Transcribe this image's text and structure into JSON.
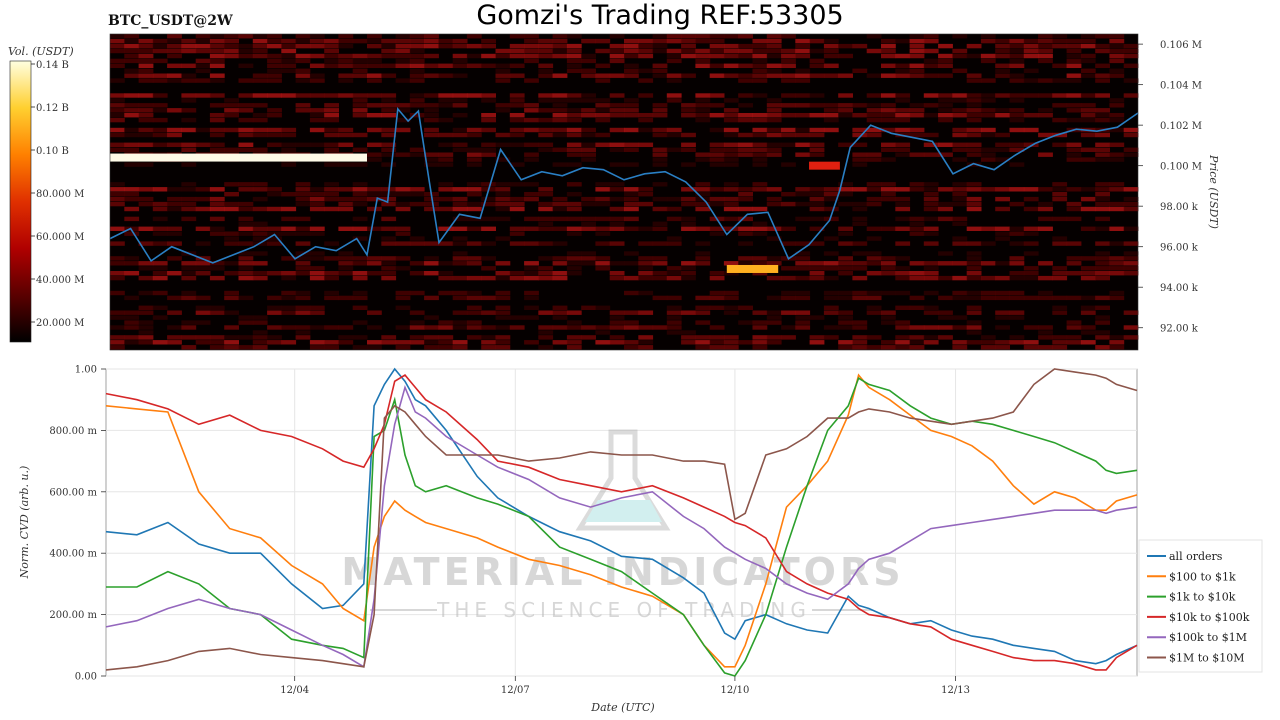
{
  "header": {
    "title": "Gomzi's Trading REF:53305",
    "subtitle": "BTC_USDT@2W"
  },
  "watermark": {
    "line1": "MATERIAL INDICATORS",
    "line2": "THE SCIENCE OF TRADING"
  },
  "chart_data": [
    {
      "type": "heatmap",
      "title": "BTC_USDT@2W",
      "colorbar": {
        "label": "Vol. (USDT)",
        "ticks": [
          "0.14 B",
          "0.12 B",
          "0.10 B",
          "80.000 M",
          "60.000 M",
          "40.000 M",
          "20.000 M"
        ],
        "colors": [
          "#000000",
          "#5a0000",
          "#b00000",
          "#e03000",
          "#ff8000",
          "#ffd030",
          "#ffffe0"
        ]
      },
      "y_axis": {
        "label": "Price (USDT)",
        "ticks": [
          "0.106 M",
          "0.104 M",
          "0.102 M",
          "0.100 M",
          "98.00 k",
          "96.00 k",
          "94.00 k",
          "92.00 k"
        ],
        "tick_values": [
          106000,
          104000,
          102000,
          100000,
          98000,
          96000,
          94000,
          92000
        ],
        "range": [
          90900,
          106500
        ]
      },
      "price_line": {
        "color": "#2a7fc4",
        "x": [
          0,
          0.02,
          0.04,
          0.06,
          0.08,
          0.1,
          0.12,
          0.14,
          0.16,
          0.18,
          0.2,
          0.22,
          0.24,
          0.25,
          0.26,
          0.27,
          0.28,
          0.29,
          0.3,
          0.31,
          0.32,
          0.34,
          0.36,
          0.38,
          0.4,
          0.42,
          0.44,
          0.46,
          0.48,
          0.5,
          0.52,
          0.54,
          0.56,
          0.58,
          0.6,
          0.62,
          0.64,
          0.66,
          0.68,
          0.7,
          0.71,
          0.72,
          0.74,
          0.76,
          0.78,
          0.8,
          0.82,
          0.84,
          0.86,
          0.88,
          0.9,
          0.92,
          0.94,
          0.96,
          0.98,
          1.0
        ],
        "y": [
          96400,
          96900,
          95300,
          96000,
          95600,
          95200,
          95600,
          96000,
          96600,
          95400,
          96000,
          95800,
          96400,
          95600,
          98400,
          98200,
          102800,
          102200,
          102700,
          99400,
          96200,
          97600,
          97400,
          100800,
          99300,
          99700,
          99500,
          99900,
          99800,
          99300,
          99600,
          99700,
          99200,
          98200,
          96600,
          97600,
          97700,
          95400,
          96100,
          97300,
          98800,
          100900,
          102000,
          101600,
          101400,
          101200,
          99600,
          100100,
          99800,
          100500,
          101100,
          101500,
          101800,
          101700,
          101900,
          102600
        ]
      },
      "bright_levels": [
        {
          "price": 100400,
          "x0": 0.0,
          "x1": 0.25,
          "intensity": "white"
        },
        {
          "price": 100000,
          "x0": 0.68,
          "x1": 0.71,
          "intensity": "red"
        },
        {
          "price": 94900,
          "x0": 0.6,
          "x1": 0.65,
          "intensity": "orange"
        }
      ]
    },
    {
      "type": "line",
      "xlabel": "Date (UTC)",
      "ylabel": "Norm. CVD (arb. u.)",
      "ylim": [
        0,
        1
      ],
      "y_ticks": [
        "0.00",
        "200.00 m",
        "400.00 m",
        "600.00 m",
        "800.00 m",
        "1.00"
      ],
      "y_tick_values": [
        0,
        0.2,
        0.4,
        0.6,
        0.8,
        1.0
      ],
      "x_ticks": [
        "12/04",
        "12/07",
        "12/10",
        "12/13"
      ],
      "x_tick_values": [
        0.183,
        0.397,
        0.61,
        0.824
      ],
      "x": [
        0,
        0.03,
        0.06,
        0.09,
        0.12,
        0.15,
        0.18,
        0.21,
        0.23,
        0.25,
        0.26,
        0.27,
        0.28,
        0.29,
        0.3,
        0.31,
        0.33,
        0.36,
        0.38,
        0.41,
        0.44,
        0.47,
        0.5,
        0.53,
        0.56,
        0.58,
        0.6,
        0.61,
        0.62,
        0.64,
        0.66,
        0.68,
        0.7,
        0.72,
        0.73,
        0.74,
        0.76,
        0.78,
        0.8,
        0.82,
        0.84,
        0.86,
        0.88,
        0.9,
        0.92,
        0.94,
        0.96,
        0.97,
        0.98,
        1.0
      ],
      "series": [
        {
          "name": "all orders",
          "color": "#1f77b4",
          "values": [
            0.47,
            0.46,
            0.5,
            0.43,
            0.4,
            0.4,
            0.3,
            0.22,
            0.23,
            0.3,
            0.88,
            0.95,
            1.0,
            0.96,
            0.9,
            0.88,
            0.8,
            0.65,
            0.58,
            0.52,
            0.47,
            0.44,
            0.39,
            0.38,
            0.32,
            0.27,
            0.14,
            0.12,
            0.18,
            0.2,
            0.17,
            0.15,
            0.14,
            0.26,
            0.23,
            0.22,
            0.19,
            0.17,
            0.18,
            0.15,
            0.13,
            0.12,
            0.1,
            0.09,
            0.08,
            0.05,
            0.04,
            0.05,
            0.07,
            0.1
          ]
        },
        {
          "name": "$100 to $1k",
          "color": "#ff7f0e",
          "values": [
            0.88,
            0.87,
            0.86,
            0.6,
            0.48,
            0.45,
            0.36,
            0.3,
            0.22,
            0.18,
            0.42,
            0.52,
            0.57,
            0.54,
            0.52,
            0.5,
            0.48,
            0.45,
            0.42,
            0.38,
            0.36,
            0.33,
            0.29,
            0.26,
            0.2,
            0.1,
            0.03,
            0.03,
            0.1,
            0.3,
            0.55,
            0.62,
            0.7,
            0.85,
            0.98,
            0.94,
            0.9,
            0.85,
            0.8,
            0.78,
            0.75,
            0.7,
            0.62,
            0.56,
            0.6,
            0.58,
            0.54,
            0.54,
            0.57,
            0.59
          ]
        },
        {
          "name": "$1k to $10k",
          "color": "#2ca02c",
          "values": [
            0.29,
            0.29,
            0.34,
            0.3,
            0.22,
            0.2,
            0.12,
            0.1,
            0.09,
            0.06,
            0.78,
            0.8,
            0.9,
            0.72,
            0.62,
            0.6,
            0.62,
            0.58,
            0.56,
            0.52,
            0.42,
            0.38,
            0.34,
            0.27,
            0.2,
            0.1,
            0.01,
            0.0,
            0.05,
            0.2,
            0.42,
            0.62,
            0.8,
            0.88,
            0.97,
            0.95,
            0.93,
            0.88,
            0.84,
            0.82,
            0.83,
            0.82,
            0.8,
            0.78,
            0.76,
            0.73,
            0.7,
            0.67,
            0.66,
            0.67
          ]
        },
        {
          "name": "$10k to $100k",
          "color": "#d62728",
          "values": [
            0.92,
            0.9,
            0.87,
            0.82,
            0.85,
            0.8,
            0.78,
            0.74,
            0.7,
            0.68,
            0.74,
            0.82,
            0.96,
            0.98,
            0.94,
            0.9,
            0.86,
            0.77,
            0.7,
            0.68,
            0.64,
            0.62,
            0.6,
            0.62,
            0.58,
            0.55,
            0.52,
            0.5,
            0.49,
            0.45,
            0.34,
            0.3,
            0.27,
            0.25,
            0.22,
            0.2,
            0.19,
            0.17,
            0.16,
            0.12,
            0.1,
            0.08,
            0.06,
            0.05,
            0.05,
            0.04,
            0.02,
            0.02,
            0.06,
            0.1
          ]
        },
        {
          "name": "$100k to $1M",
          "color": "#9467bd",
          "values": [
            0.16,
            0.18,
            0.22,
            0.25,
            0.22,
            0.2,
            0.15,
            0.1,
            0.07,
            0.03,
            0.25,
            0.62,
            0.82,
            0.94,
            0.86,
            0.84,
            0.78,
            0.72,
            0.68,
            0.64,
            0.58,
            0.55,
            0.58,
            0.6,
            0.52,
            0.48,
            0.42,
            0.4,
            0.38,
            0.35,
            0.3,
            0.27,
            0.25,
            0.3,
            0.35,
            0.38,
            0.4,
            0.44,
            0.48,
            0.49,
            0.5,
            0.51,
            0.52,
            0.53,
            0.54,
            0.54,
            0.54,
            0.53,
            0.54,
            0.55
          ]
        },
        {
          "name": "$1M to $10M",
          "color": "#8c564b",
          "values": [
            0.02,
            0.03,
            0.05,
            0.08,
            0.09,
            0.07,
            0.06,
            0.05,
            0.04,
            0.03,
            0.2,
            0.84,
            0.88,
            0.86,
            0.82,
            0.78,
            0.72,
            0.72,
            0.72,
            0.7,
            0.71,
            0.73,
            0.72,
            0.72,
            0.7,
            0.7,
            0.69,
            0.51,
            0.53,
            0.72,
            0.74,
            0.78,
            0.84,
            0.84,
            0.86,
            0.87,
            0.86,
            0.84,
            0.83,
            0.82,
            0.83,
            0.84,
            0.86,
            0.95,
            1.0,
            0.99,
            0.98,
            0.97,
            0.95,
            0.93
          ]
        }
      ],
      "legend_position": "right"
    }
  ]
}
